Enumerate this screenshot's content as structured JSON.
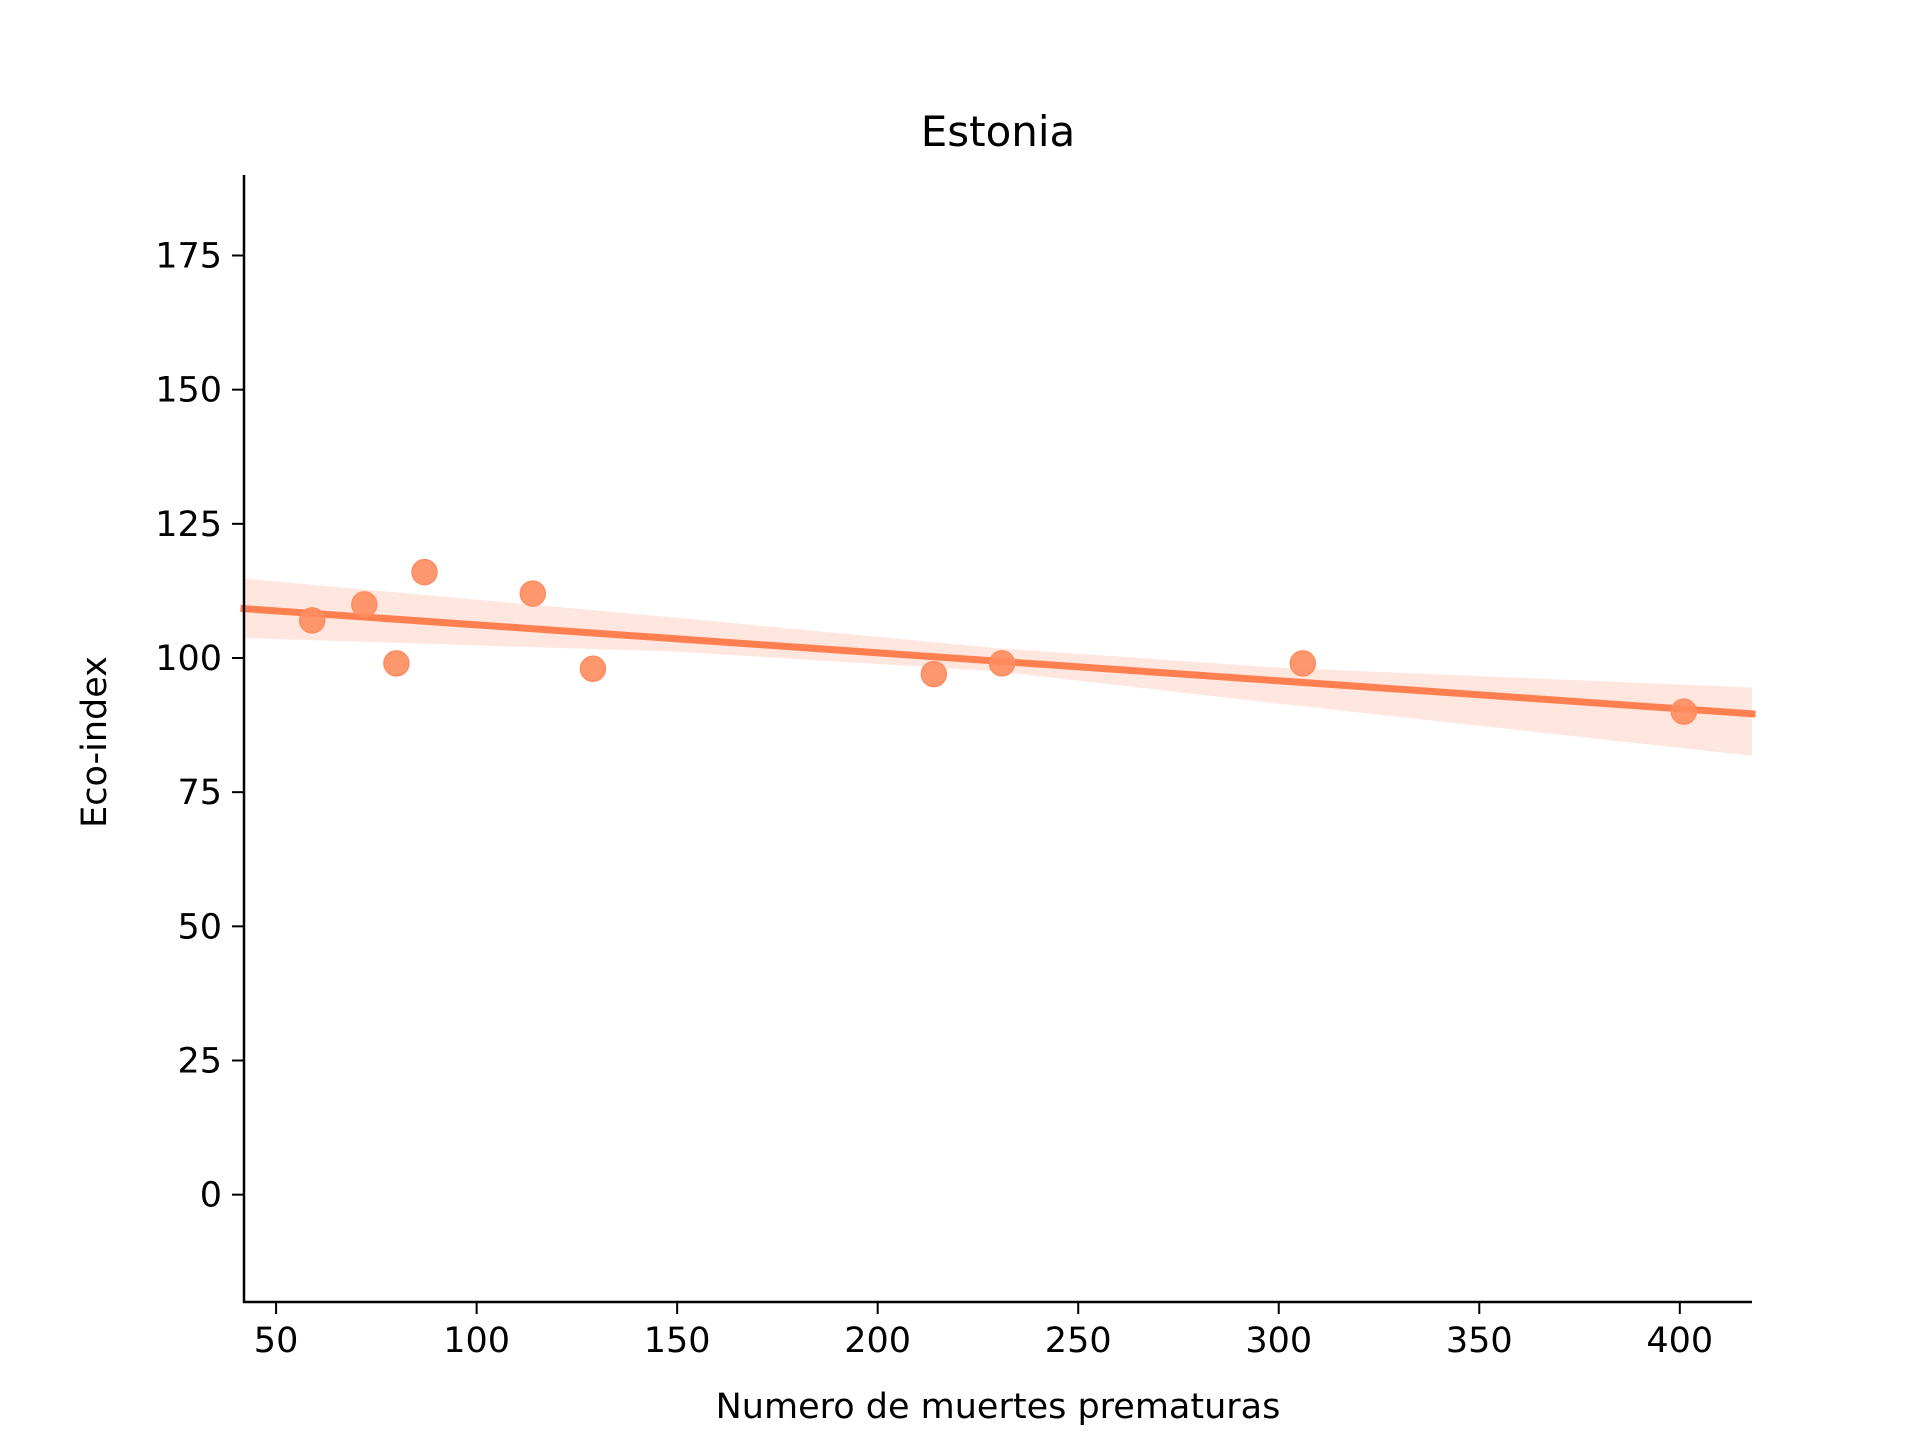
{
  "chart_data": {
    "type": "scatter",
    "title": "Estonia",
    "xlabel": "Numero de muertes prematuras",
    "ylabel": "Eco-index",
    "xlim": [
      42,
      418
    ],
    "ylim": [
      -20,
      190
    ],
    "xticks": [
      50,
      100,
      150,
      200,
      250,
      300,
      350,
      400
    ],
    "yticks": [
      0,
      25,
      50,
      75,
      100,
      125,
      150,
      175
    ],
    "grid": false,
    "points": [
      {
        "x": 59,
        "y": 107
      },
      {
        "x": 72,
        "y": 110
      },
      {
        "x": 80,
        "y": 99
      },
      {
        "x": 87,
        "y": 116
      },
      {
        "x": 114,
        "y": 112
      },
      {
        "x": 129,
        "y": 98
      },
      {
        "x": 214,
        "y": 97
      },
      {
        "x": 231,
        "y": 99
      },
      {
        "x": 306,
        "y": 99
      },
      {
        "x": 401,
        "y": 90
      }
    ],
    "regression": {
      "line": [
        [
          42,
          109.2
        ],
        [
          418,
          89.6
        ]
      ],
      "ci_upper": [
        [
          42,
          114.8
        ],
        [
          150,
          107.5
        ],
        [
          230,
          101.8
        ],
        [
          300,
          98.2
        ],
        [
          418,
          94.5
        ]
      ],
      "ci_lower": [
        [
          42,
          103.7
        ],
        [
          150,
          101.2
        ],
        [
          230,
          97.5
        ],
        [
          300,
          91.5
        ],
        [
          418,
          81.8
        ]
      ]
    },
    "colors": {
      "points": "#FF8C5E",
      "line": "#FF7F50",
      "band": "#FFE3D9",
      "axis": "#000000"
    }
  }
}
